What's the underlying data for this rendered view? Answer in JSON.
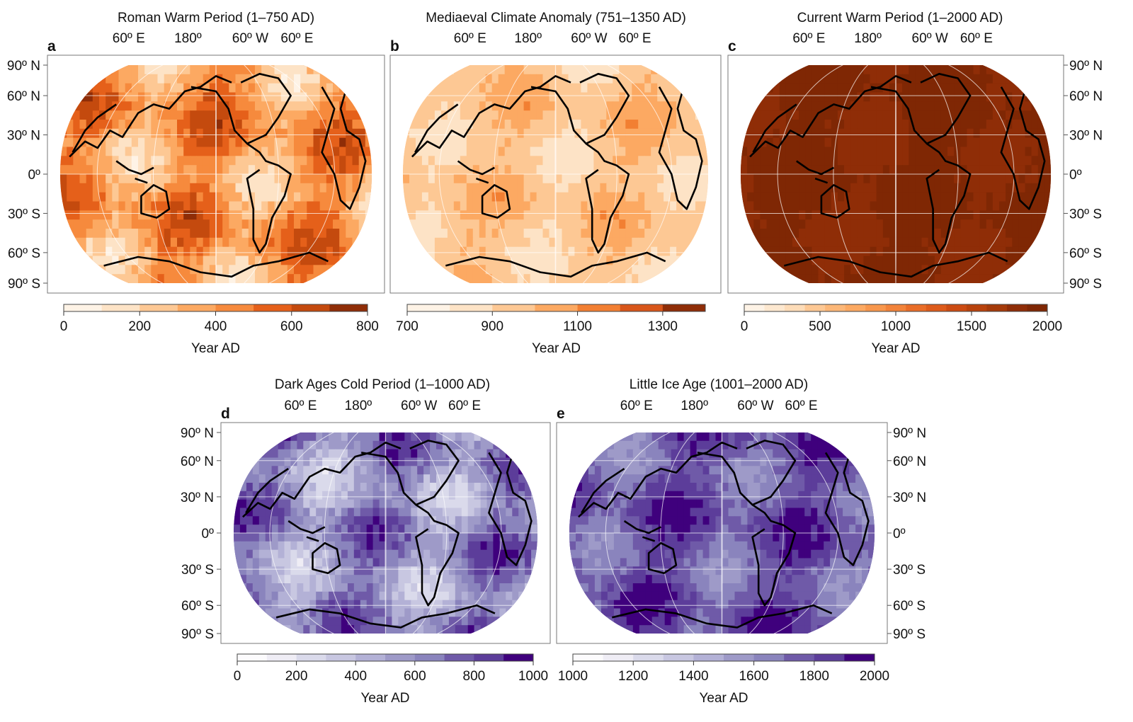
{
  "figure": {
    "panels": [
      {
        "letter": "a",
        "title": "Roman Warm Period (1–750 AD)",
        "lon_labels": [
          "60º E",
          "180º",
          "60º W",
          "60º E"
        ],
        "lat_labels": [
          "90º N",
          "60º N",
          "30º N",
          "0º",
          "30º S",
          "60º S",
          "90º S"
        ],
        "lat_side": "left",
        "colorbar": {
          "min": 0,
          "max": 800,
          "ticks": [
            "0",
            "200",
            "400",
            "600",
            "800"
          ],
          "label": "Year AD",
          "colors": [
            "#fef3e6",
            "#fde3c6",
            "#fdc894",
            "#fca962",
            "#f68a3d",
            "#e5601a",
            "#c44a0e",
            "#8f2d07"
          ]
        },
        "dominant_color": "#f68a3d"
      },
      {
        "letter": "b",
        "title": "Mediaeval Climate Anomaly (751–1350 AD)",
        "lon_labels": [
          "60º E",
          "180º",
          "60º W",
          "60º E"
        ],
        "lat_labels": [],
        "lat_side": "none",
        "colorbar": {
          "min": 700,
          "max": 1400,
          "ticks": [
            "700",
            "900",
            "1100",
            "1300"
          ],
          "label": "Year AD",
          "colors": [
            "#fef3e6",
            "#fde3c6",
            "#fdc894",
            "#fca962",
            "#f27f32",
            "#d8561a",
            "#8f2d07"
          ]
        },
        "dominant_color": "#fdc894"
      },
      {
        "letter": "c",
        "title": "Current Warm Period (1–2000 AD)",
        "lon_labels": [
          "60º E",
          "180º",
          "60º W",
          "60º E"
        ],
        "lat_labels": [
          "90º N",
          "60º N",
          "30º N",
          "0º",
          "30º S",
          "60º S",
          "90º S"
        ],
        "lat_side": "right",
        "colorbar": {
          "min": 0,
          "max": 2000,
          "ticks": [
            "0",
            "500",
            "1000",
            "1500",
            "2000"
          ],
          "label": "Year AD",
          "colors": [
            "#fef3e6",
            "#fde8d0",
            "#fddcb8",
            "#fdc894",
            "#fcb778",
            "#fca962",
            "#f8974d",
            "#f2833a",
            "#e96d28",
            "#dd5b1b",
            "#cc4b12",
            "#b8420c",
            "#a53a09",
            "#8f2d07",
            "#7f2704"
          ]
        },
        "dominant_color": "#7f2704"
      },
      {
        "letter": "d",
        "title": "Dark Ages Cold Period (1–1000 AD)",
        "lon_labels": [
          "60º E",
          "180º",
          "60º W",
          "60º E"
        ],
        "lat_labels": [
          "90º N",
          "60º N",
          "30º N",
          "0º",
          "30º S",
          "60º S",
          "90º S"
        ],
        "lat_side": "left",
        "colorbar": {
          "min": 0,
          "max": 1000,
          "ticks": [
            "0",
            "200",
            "400",
            "600",
            "800",
            "1000"
          ],
          "label": "Year AD",
          "colors": [
            "#fcfbfd",
            "#efedf5",
            "#dadaeb",
            "#c8c7e1",
            "#b3b1d6",
            "#9e9ac8",
            "#8a84bd",
            "#6f5aa8",
            "#5c3d9a",
            "#3f007d"
          ]
        },
        "dominant_color": "#6f5aa8"
      },
      {
        "letter": "e",
        "title": "Little Ice Age (1001–2000 AD)",
        "lon_labels": [
          "60º E",
          "180º",
          "60º W",
          "60º E"
        ],
        "lat_labels": [
          "90º N",
          "60º N",
          "30º N",
          "0º",
          "30º S",
          "60º S",
          "90º S"
        ],
        "lat_side": "right",
        "colorbar": {
          "min": 1000,
          "max": 2000,
          "ticks": [
            "1000",
            "1200",
            "1400",
            "1600",
            "1800",
            "2000"
          ],
          "label": "Year AD",
          "colors": [
            "#fcfbfd",
            "#efedf5",
            "#dadaeb",
            "#c8c7e1",
            "#b3b1d6",
            "#9e9ac8",
            "#8a84bd",
            "#6f5aa8",
            "#5c3d9a",
            "#3f007d"
          ]
        },
        "dominant_color": "#5c3d9a"
      }
    ]
  }
}
